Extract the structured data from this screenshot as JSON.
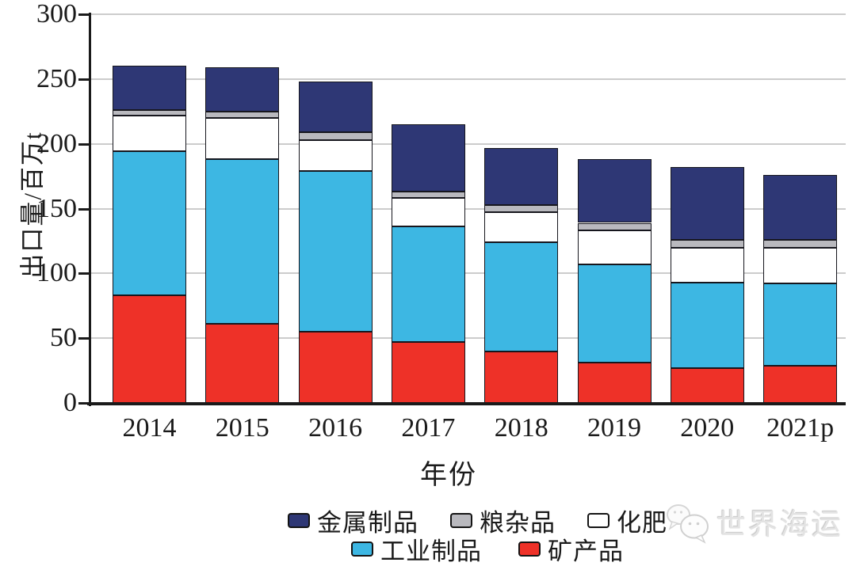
{
  "chart_data": {
    "type": "bar",
    "stacked": true,
    "title": "",
    "xlabel": "年份",
    "ylabel": "出口量/百万t",
    "ylim": [
      0,
      300
    ],
    "yticks": [
      0,
      50,
      100,
      150,
      200,
      250,
      300
    ],
    "grid": "horizontal",
    "legend_position": "bottom",
    "categories": [
      "2014",
      "2015",
      "2016",
      "2017",
      "2018",
      "2019",
      "2020",
      "2021p"
    ],
    "series": [
      {
        "name": "矿产品",
        "color": "#ee3128",
        "values": [
          83,
          61,
          55,
          47,
          40,
          31,
          27,
          29
        ]
      },
      {
        "name": "工业制品",
        "color": "#3db7e3",
        "values": [
          111,
          127,
          124,
          89,
          84,
          76,
          66,
          63
        ]
      },
      {
        "name": "化肥",
        "color": "#ffffff",
        "values": [
          28,
          32,
          24,
          22,
          23,
          26,
          27,
          28
        ]
      },
      {
        "name": "粮杂品",
        "color": "#b9b9be",
        "values": [
          4,
          5,
          6,
          5,
          6,
          6,
          6,
          6
        ]
      },
      {
        "name": "金属制品",
        "color": "#2e3775",
        "values": [
          34,
          34,
          39,
          52,
          44,
          49,
          56,
          50
        ]
      }
    ],
    "totals": [
      260,
      259,
      248,
      215,
      197,
      188,
      182,
      176
    ]
  },
  "legend": {
    "rows": [
      [
        {
          "key": "metal",
          "label": "金属制品",
          "color": "#2e3775"
        },
        {
          "key": "grain",
          "label": "粮杂品",
          "color": "#b9b9be"
        },
        {
          "key": "fertilizer",
          "label": "化肥",
          "color": "#ffffff"
        }
      ],
      [
        {
          "key": "industrial",
          "label": "工业制品",
          "color": "#3db7e3"
        },
        {
          "key": "mineral",
          "label": "矿产品",
          "color": "#ee3128"
        }
      ]
    ]
  },
  "colors": {
    "axis": "#1a1a1a",
    "gridline": "#cccccc",
    "bar_outline": "#16161d",
    "navy": "#2e3775",
    "light_blue": "#3db7e3",
    "red": "#ee3128",
    "gray": "#b9b9be",
    "white": "#ffffff",
    "watermark": "#e3e3e3"
  },
  "watermark": {
    "text": "世界海运",
    "logo": "wechat-chat-bubbles-icon"
  }
}
